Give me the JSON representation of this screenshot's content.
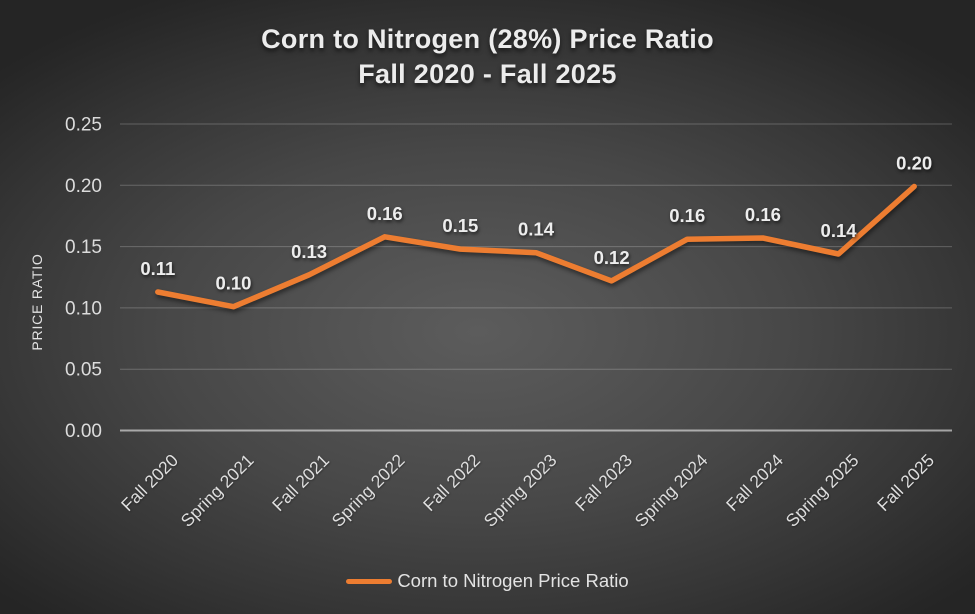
{
  "title": {
    "line1": "Corn to Nitrogen (28%) Price Ratio",
    "line2": "Fall 2020 - Fall 2025"
  },
  "legend": {
    "label": "Corn to Nitrogen Price Ratio"
  },
  "colors": {
    "line": "#ED7D31",
    "title_text": "#ECECEC",
    "tick_text": "#DCDCDC",
    "data_label_text": "#EDEDED"
  },
  "chart_data": {
    "type": "line",
    "title": "Corn to Nitrogen (28%) Price Ratio Fall 2020 - Fall 2025",
    "categories": [
      "Fall 2020",
      "Spring 2021",
      "Fall 2021",
      "Spring 2022",
      "Fall 2022",
      "Spring 2023",
      "Fall 2023",
      "Spring 2024",
      "Fall 2024",
      "Spring 2025",
      "Fall 2025"
    ],
    "series": [
      {
        "name": "Corn to Nitrogen Price Ratio",
        "values": [
          0.11,
          0.1,
          0.13,
          0.16,
          0.15,
          0.14,
          0.12,
          0.16,
          0.16,
          0.14,
          0.2
        ],
        "values_precise": [
          0.113,
          0.101,
          0.127,
          0.158,
          0.148,
          0.145,
          0.122,
          0.156,
          0.157,
          0.144,
          0.199
        ],
        "point_labels": [
          "0.11",
          "0.10",
          "0.13",
          "0.16",
          "0.15",
          "0.14",
          "0.12",
          "0.16",
          "0.16",
          "0.14",
          "0.20"
        ],
        "color": "#ED7D31"
      }
    ],
    "xlabel": "",
    "ylabel": "PRICE RATIO",
    "ylim": [
      0,
      0.25
    ],
    "ytick_step": 0.05,
    "y_ticks": [
      "0.00",
      "0.05",
      "0.10",
      "0.15",
      "0.20",
      "0.25"
    ],
    "grid": true,
    "legend_position": "bottom",
    "x_label_rotation_deg": -45
  }
}
